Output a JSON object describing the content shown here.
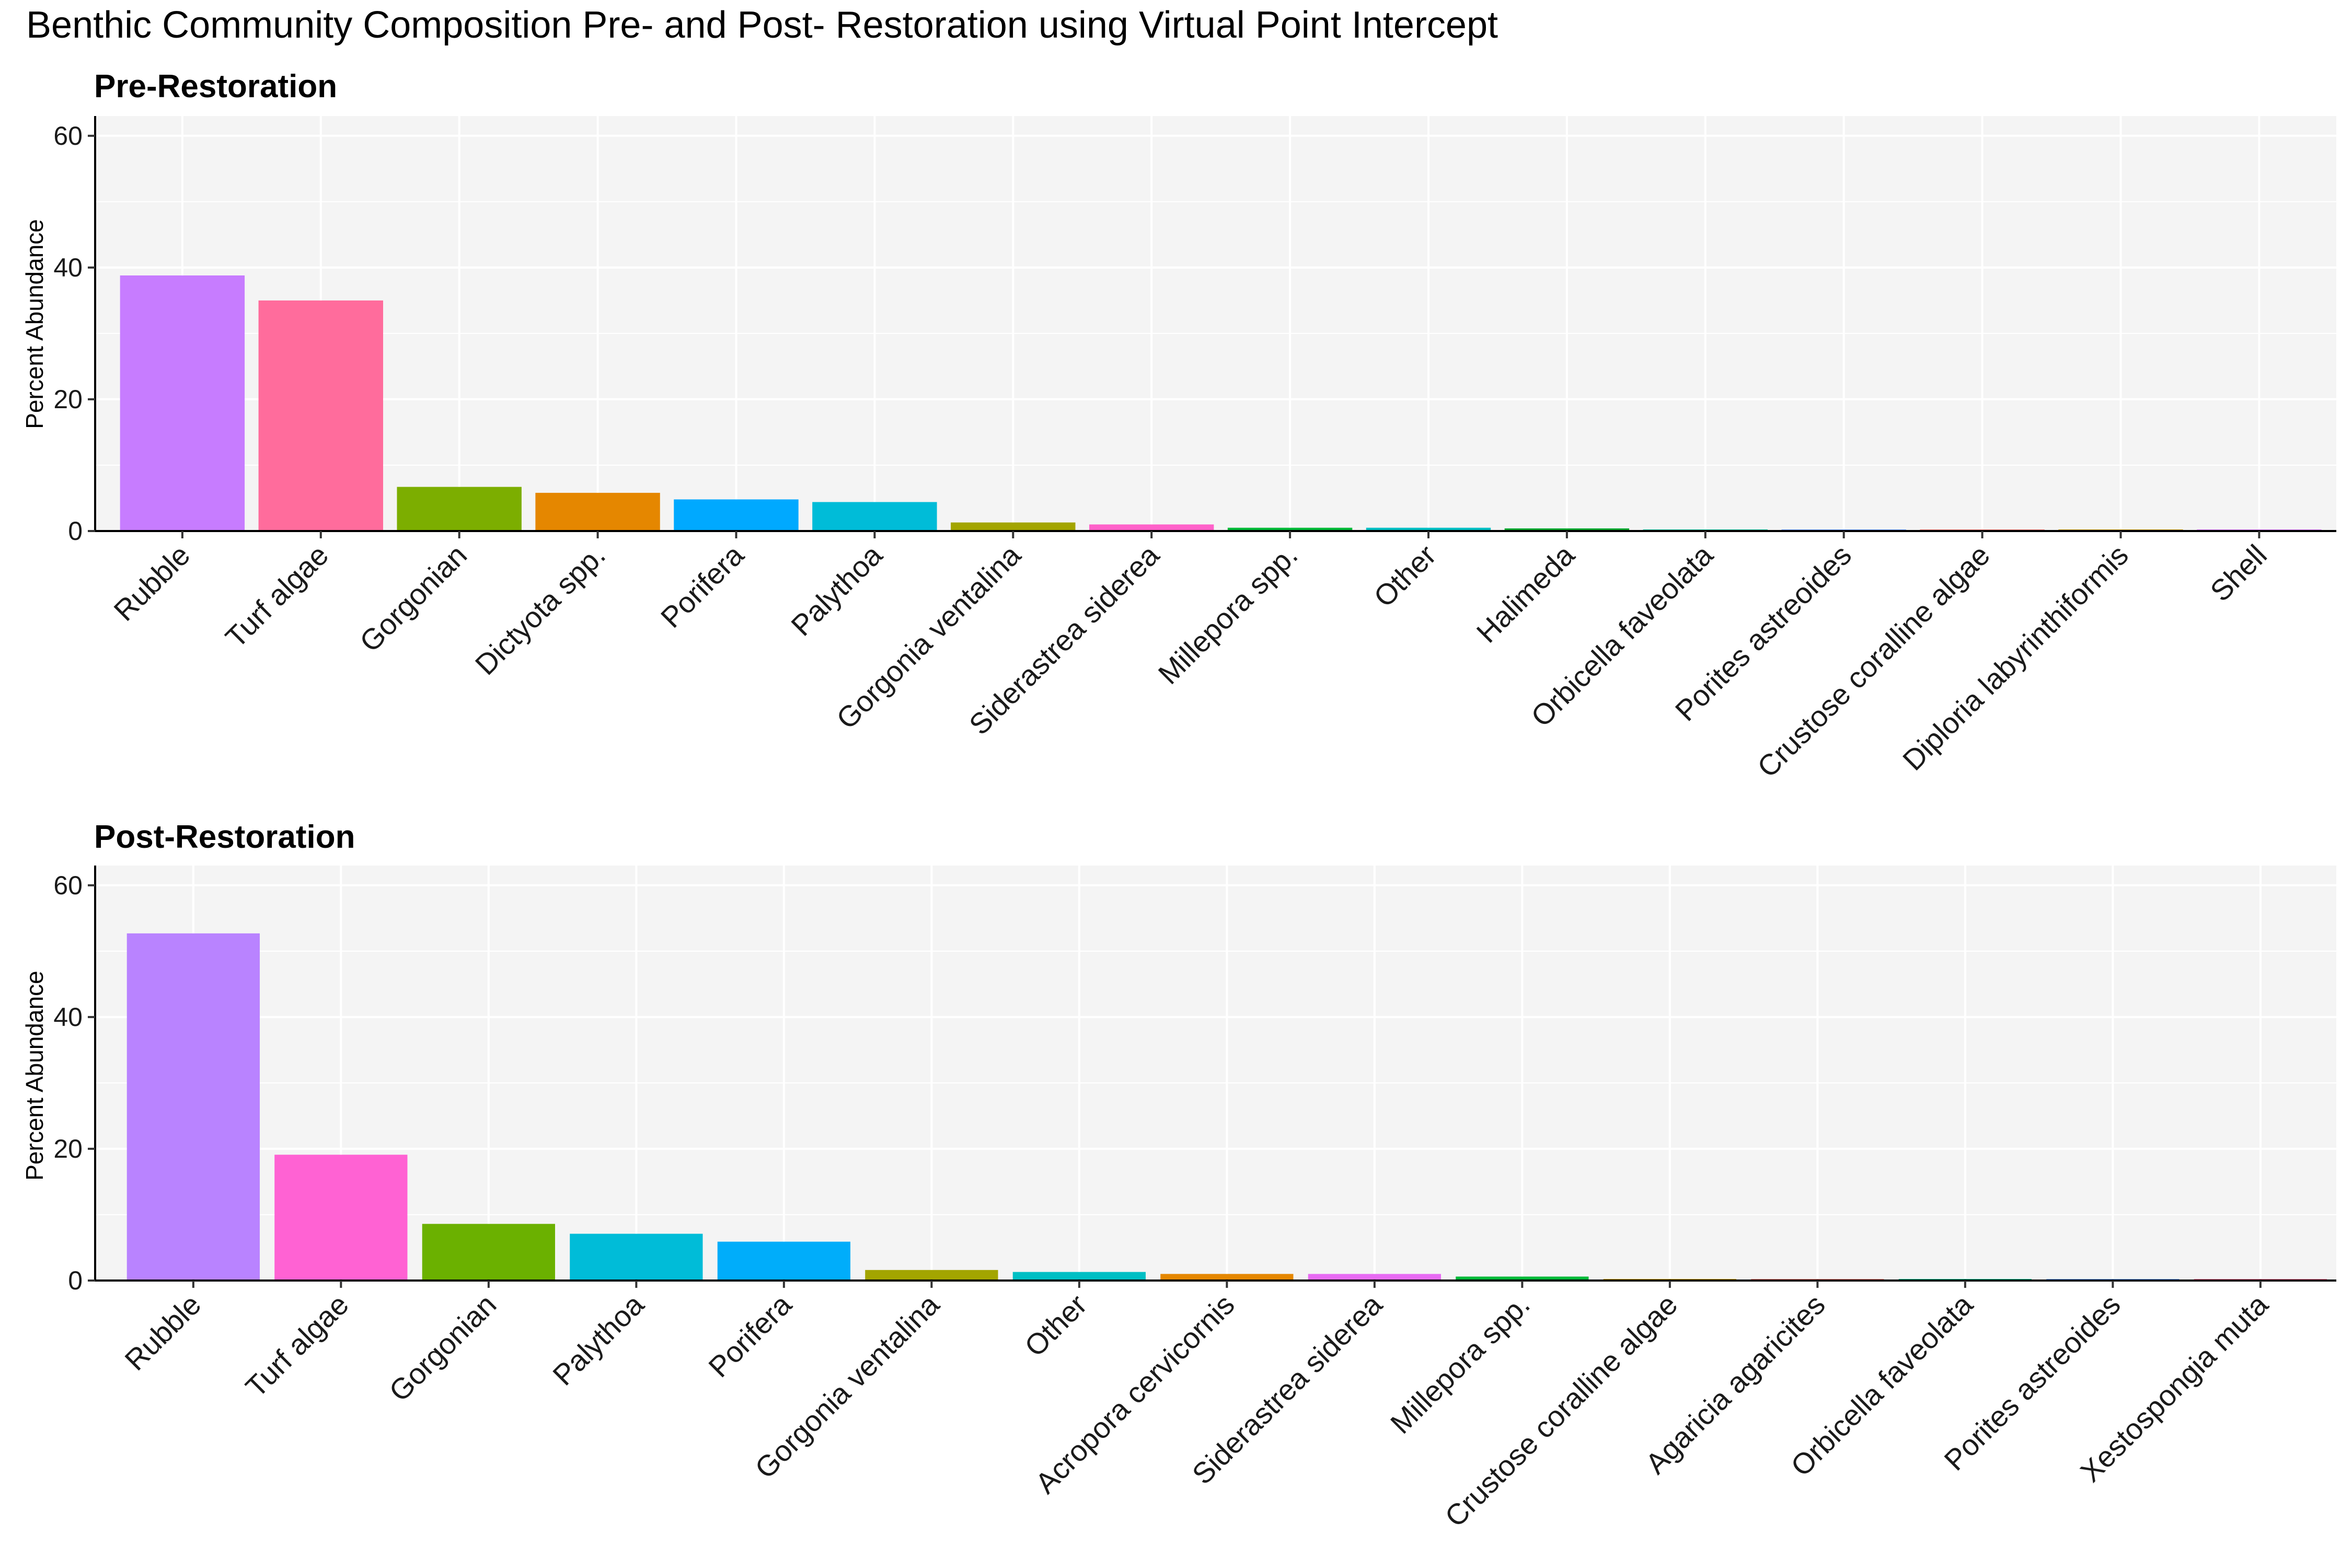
{
  "title": "Benthic Community Composition Pre- and Post- Restoration using Virtual Point Intercept",
  "chart_data": [
    {
      "type": "bar",
      "title": "Pre-Restoration",
      "xlabel": "",
      "ylabel": "Percent Abundance",
      "ylim": [
        0,
        63
      ],
      "yticks": [
        0,
        20,
        40,
        60
      ],
      "grid": true,
      "legend": "none",
      "categories": [
        "Rubble",
        "Turf algae",
        "Gorgonian",
        "Dictyota spp.",
        "Porifera",
        "Palythoa",
        "Gorgonia ventalina",
        "Siderastrea siderea",
        "Millepora spp.",
        "Other",
        "Halimeda",
        "Orbicella faveolata",
        "Porites astreoides",
        "Crustose coralline algae",
        "Diploria labyrinthiformis",
        "Shell"
      ],
      "values": [
        38.8,
        35.0,
        6.7,
        5.8,
        4.8,
        4.4,
        1.3,
        1.0,
        0.5,
        0.5,
        0.4,
        0.15,
        0.15,
        0.15,
        0.15,
        0.15
      ],
      "colors": [
        "#C77CFF",
        "#FF6C9C",
        "#7CAE00",
        "#E58700",
        "#00A9FF",
        "#00BCD8",
        "#A3A500",
        "#FF61C9",
        "#00BA38",
        "#00BFC4",
        "#00A82E",
        "#00C19A",
        "#619CFF",
        "#F8766D",
        "#C99800",
        "#DB72FB"
      ]
    },
    {
      "type": "bar",
      "title": "Post-Restoration",
      "xlabel": "",
      "ylabel": "Percent Abundance",
      "ylim": [
        0,
        63
      ],
      "yticks": [
        0,
        20,
        40,
        60
      ],
      "grid": true,
      "legend": "none",
      "categories": [
        "Rubble",
        "Turf algae",
        "Gorgonian",
        "Palythoa",
        "Porifera",
        "Gorgonia ventalina",
        "Other",
        "Acropora cervicornis",
        "Siderastrea siderea",
        "Millepora spp.",
        "Crustose coralline algae",
        "Agaricia agaricites",
        "Orbicella faveolata",
        "Porites astreoides",
        "Xestospongia muta"
      ],
      "values": [
        52.7,
        19.1,
        8.6,
        7.1,
        5.9,
        1.6,
        1.3,
        1.0,
        1.0,
        0.6,
        0.15,
        0.1,
        0.1,
        0.1,
        0.1
      ],
      "colors": [
        "#B983FF",
        "#FF62D3",
        "#6BB100",
        "#00BCD8",
        "#00ADFA",
        "#A3A500",
        "#00BFC4",
        "#E58700",
        "#E76BF3",
        "#00BA38",
        "#C99800",
        "#F8766D",
        "#00C08B",
        "#619CFF",
        "#FF6C91"
      ]
    }
  ]
}
